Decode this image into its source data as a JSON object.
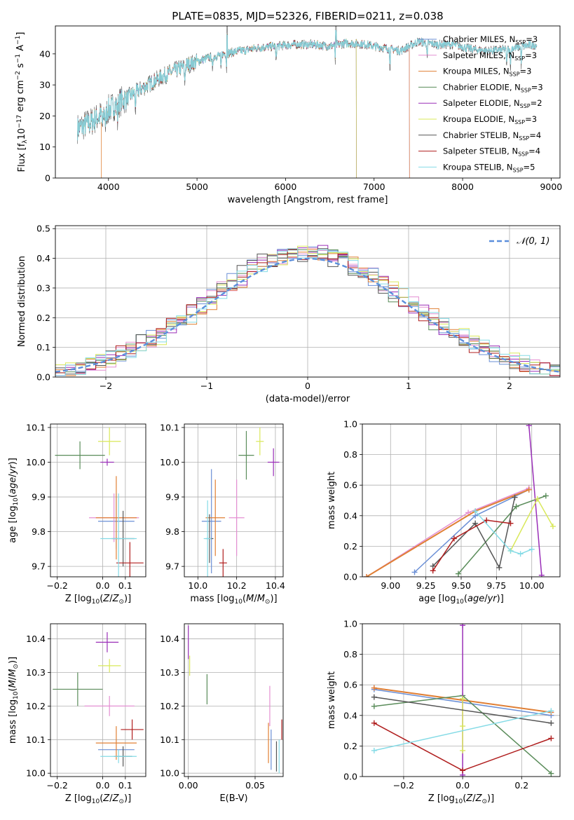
{
  "figure_title": "PLATE=0835, MJD=52326, FIBERID=0211, z=0.038",
  "colors": {
    "Chabrier MILES": "#6a8fd6",
    "Salpeter MILES": "#e48fd2",
    "Kroupa MILES": "#e08035",
    "Chabrier ELODIE": "#5a8c5a",
    "Salpeter ELODIE": "#9a2fb8",
    "Kroupa ELODIE": "#d9e85a",
    "Chabrier STELIB": "#555555",
    "Salpeter STELIB": "#b01e1e",
    "Kroupa STELIB": "#85dbe6",
    "normal": "#5b8fdc"
  },
  "chart_data": [
    {
      "id": "spectrum",
      "type": "line",
      "title": "PLATE=0835, MJD=52326, FIBERID=0211, z=0.038",
      "xlabel": "wavelength [Angstrom, rest frame]",
      "ylabel": "Flux [fλ10⁻¹⁷ erg cm⁻² s⁻¹ A⁻¹]",
      "xlim": [
        3400,
        9100
      ],
      "ylim": [
        0,
        49
      ],
      "xticks": [
        "4000",
        "5000",
        "6000",
        "7000",
        "8000",
        "9000"
      ],
      "yticks": [
        "0",
        "10",
        "20",
        "30",
        "40"
      ],
      "legend_position": "top-right",
      "legend": [
        "Chabrier MILES, NSSP=3",
        "Salpeter MILES, NSSP=3",
        "Kroupa MILES, NSSP=3",
        "Chabrier ELODIE, NSSP=3",
        "Salpeter ELODIE, NSSP=2",
        "Kroupa ELODIE, NSSP=3",
        "Chabrier STELIB, NSSP=4",
        "Salpeter STELIB, NSSP=4",
        "Kroupa STELIB, NSSP=5"
      ],
      "continuum": {
        "x": [
          3650,
          3800,
          3950,
          4100,
          4300,
          4500,
          4700,
          4900,
          5100,
          5300,
          5500,
          5700,
          5900,
          6100,
          6300,
          6500,
          6700,
          6900,
          7100,
          7300,
          7500,
          7700,
          7900,
          8100,
          8300,
          8500,
          8700,
          8840
        ],
        "y": [
          16,
          18,
          21,
          24,
          27.5,
          31,
          34,
          36.5,
          38.5,
          40,
          41,
          42,
          42.5,
          43,
          43,
          42.5,
          43.5,
          43,
          42,
          41,
          44,
          43,
          43,
          41.5,
          41,
          41.5,
          42.5,
          43
        ]
      },
      "absorption_features": [
        3934,
        3968,
        4102,
        4304,
        4861,
        5175,
        5270,
        5335,
        5893,
        6563,
        7180,
        7600,
        8498,
        8542,
        8662
      ],
      "model_end": {
        "Chabrier MILES": 7400,
        "Salpeter MILES": 7400,
        "Kroupa MILES": 7400,
        "Chabrier ELODIE": 6800,
        "Salpeter ELODIE": 6800,
        "Kroupa ELODIE": 6800,
        "Chabrier STELIB": 8840,
        "Salpeter STELIB": 8840,
        "Kroupa STELIB": 8840
      }
    },
    {
      "id": "residuals",
      "type": "bar",
      "xlabel": "(data-model)/error",
      "ylabel": "Normed distribution",
      "xlim": [
        -2.5,
        2.5
      ],
      "ylim": [
        0,
        0.51
      ],
      "xticks": [
        "−2",
        "−1",
        "0",
        "1",
        "2"
      ],
      "yticks": [
        "0.0",
        "0.1",
        "0.2",
        "0.3",
        "0.4",
        "0.5"
      ],
      "legend": "𝒩(0, 1)",
      "legend_position": "top-right"
    },
    {
      "id": "age_vs_Z",
      "type": "scatter",
      "xlabel": "Z [log10(Z/Z⊙)]",
      "ylabel": "age  [log10(age/yr)]",
      "xlim": [
        -0.23,
        0.19
      ],
      "ylim": [
        9.67,
        10.11
      ],
      "xticks": [
        "−0.2",
        "0.0",
        "0.1"
      ],
      "yticks": [
        "9.7",
        "9.8",
        "9.9",
        "10.0",
        "10.1"
      ],
      "points": [
        {
          "model": "Chabrier MILES",
          "x": 0.06,
          "y": 9.83,
          "xerr": 0.08,
          "yerr": 0.08
        },
        {
          "model": "Salpeter MILES",
          "x": 0.05,
          "y": 9.84,
          "xerr": 0.11,
          "yerr": 0.07
        },
        {
          "model": "Kroupa MILES",
          "x": 0.06,
          "y": 9.84,
          "xerr": 0.09,
          "yerr": 0.12
        },
        {
          "model": "Chabrier ELODIE",
          "x": -0.1,
          "y": 10.02,
          "xerr": 0.11,
          "yerr": 0.04
        },
        {
          "model": "Salpeter ELODIE",
          "x": 0.02,
          "y": 10.0,
          "xerr": 0.03,
          "yerr": 0.01
        },
        {
          "model": "Kroupa ELODIE",
          "x": 0.03,
          "y": 10.06,
          "xerr": 0.05,
          "yerr": 0.04
        },
        {
          "model": "Chabrier STELIB",
          "x": 0.09,
          "y": 9.78,
          "xerr": 0.05,
          "yerr": 0.08
        },
        {
          "model": "Salpeter STELIB",
          "x": 0.12,
          "y": 9.71,
          "xerr": 0.06,
          "yerr": 0.06
        },
        {
          "model": "Kroupa STELIB",
          "x": 0.07,
          "y": 9.78,
          "xerr": 0.08,
          "yerr": 0.13
        }
      ]
    },
    {
      "id": "age_vs_mass",
      "type": "scatter",
      "xlabel": "mass [log10(M/M⊙)]",
      "ylabel": "",
      "xlim": [
        9.93,
        10.44
      ],
      "ylim": [
        9.67,
        10.11
      ],
      "xticks": [
        "10.0",
        "10.2",
        "10.4"
      ],
      "yticks": [
        "9.7",
        "9.8",
        "9.9",
        "10.0",
        "10.1"
      ],
      "points": [
        {
          "model": "Chabrier MILES",
          "x": 10.07,
          "y": 9.83,
          "xerr": 0.05,
          "yerr": 0.15
        },
        {
          "model": "Salpeter MILES",
          "x": 10.2,
          "y": 9.84,
          "xerr": 0.04,
          "yerr": 0.11
        },
        {
          "model": "Kroupa MILES",
          "x": 10.09,
          "y": 9.84,
          "xerr": 0.05,
          "yerr": 0.11
        },
        {
          "model": "Chabrier ELODIE",
          "x": 10.25,
          "y": 10.02,
          "xerr": 0.04,
          "yerr": 0.07
        },
        {
          "model": "Salpeter ELODIE",
          "x": 10.39,
          "y": 10.0,
          "xerr": 0.03,
          "yerr": 0.04
        },
        {
          "model": "Kroupa ELODIE",
          "x": 10.32,
          "y": 10.06,
          "xerr": 0.02,
          "yerr": 0.04
        },
        {
          "model": "Chabrier STELIB",
          "x": 10.06,
          "y": 9.78,
          "xerr": 0.02,
          "yerr": 0.07
        },
        {
          "model": "Salpeter STELIB",
          "x": 10.13,
          "y": 9.71,
          "xerr": 0.02,
          "yerr": 0.04
        },
        {
          "model": "Kroupa STELIB",
          "x": 10.05,
          "y": 9.78,
          "xerr": 0.02,
          "yerr": 0.11
        }
      ]
    },
    {
      "id": "weight_vs_age",
      "type": "line",
      "xlabel": "age  [log10(age/yr)]",
      "ylabel": "mass weight",
      "xlim": [
        8.8,
        10.2
      ],
      "ylim": [
        0,
        1
      ],
      "xticks": [
        "9.00",
        "9.25",
        "9.50",
        "9.75",
        "10.00"
      ],
      "yticks": [
        "0.0",
        "0.2",
        "0.4",
        "0.6",
        "0.8",
        "1.0"
      ],
      "series": [
        {
          "model": "Chabrier MILES",
          "x": [
            9.17,
            9.6,
            9.98
          ],
          "y": [
            0.03,
            0.4,
            0.57
          ]
        },
        {
          "model": "Salpeter MILES",
          "x": [
            8.83,
            9.55,
            9.98
          ],
          "y": [
            0.0,
            0.42,
            0.58
          ]
        },
        {
          "model": "Kroupa MILES",
          "x": [
            8.83,
            9.6,
            9.98
          ],
          "y": [
            0.0,
            0.43,
            0.57
          ]
        },
        {
          "model": "Chabrier ELODIE",
          "x": [
            9.48,
            9.89,
            10.1
          ],
          "y": [
            0.02,
            0.46,
            0.53
          ]
        },
        {
          "model": "Salpeter ELODIE",
          "x": [
            9.98,
            10.07
          ],
          "y": [
            0.99,
            0.01
          ]
        },
        {
          "model": "Kroupa ELODIE",
          "x": [
            9.85,
            10.04,
            10.15
          ],
          "y": [
            0.17,
            0.51,
            0.33
          ]
        },
        {
          "model": "Chabrier STELIB",
          "x": [
            9.3,
            9.6,
            9.77,
            9.88
          ],
          "y": [
            0.07,
            0.35,
            0.06,
            0.52
          ]
        },
        {
          "model": "Salpeter STELIB",
          "x": [
            9.3,
            9.45,
            9.68,
            9.85
          ],
          "y": [
            0.04,
            0.25,
            0.37,
            0.35
          ]
        },
        {
          "model": "Kroupa STELIB",
          "x": [
            9.6,
            9.85,
            9.92,
            10.0
          ],
          "y": [
            0.43,
            0.17,
            0.15,
            0.18
          ]
        }
      ]
    },
    {
      "id": "mass_vs_Z",
      "type": "scatter",
      "xlabel": "Z [log10(Z/Z⊙)]",
      "ylabel": "mass [log10(M/M⊙)]",
      "xlim": [
        -0.23,
        0.19
      ],
      "ylim": [
        9.99,
        10.445
      ],
      "xticks": [
        "−0.2",
        "0.0",
        "0.1"
      ],
      "yticks": [
        "10.0",
        "10.1",
        "10.2",
        "10.3",
        "10.4"
      ],
      "points": [
        {
          "model": "Chabrier MILES",
          "x": 0.06,
          "y": 10.07,
          "xerr": 0.08,
          "yerr": 0.0
        },
        {
          "model": "Salpeter MILES",
          "x": 0.03,
          "y": 10.2,
          "xerr": 0.11,
          "yerr": 0.03
        },
        {
          "model": "Kroupa MILES",
          "x": 0.06,
          "y": 10.09,
          "xerr": 0.09,
          "yerr": 0.05
        },
        {
          "model": "Chabrier ELODIE",
          "x": -0.11,
          "y": 10.25,
          "xerr": 0.11,
          "yerr": 0.05
        },
        {
          "model": "Salpeter ELODIE",
          "x": 0.02,
          "y": 10.39,
          "xerr": 0.05,
          "yerr": 0.03
        },
        {
          "model": "Kroupa ELODIE",
          "x": 0.03,
          "y": 10.32,
          "xerr": 0.05,
          "yerr": 0.02
        },
        {
          "model": "Chabrier STELIB",
          "x": 0.09,
          "y": 10.05,
          "xerr": 0.04,
          "yerr": 0.03
        },
        {
          "model": "Salpeter STELIB",
          "x": 0.13,
          "y": 10.13,
          "xerr": 0.05,
          "yerr": 0.03
        },
        {
          "model": "Kroupa STELIB",
          "x": 0.07,
          "y": 10.05,
          "xerr": 0.08,
          "yerr": 0.02
        }
      ]
    },
    {
      "id": "mass_vs_ebv",
      "type": "scatter",
      "xlabel": "E(B-V)",
      "ylabel": "",
      "xlim": [
        -0.003,
        0.071
      ],
      "ylim": [
        9.99,
        10.445
      ],
      "xticks": [
        "0.00",
        "0.05"
      ],
      "yticks": [
        "10.0",
        "10.1",
        "10.2",
        "10.3",
        "10.4"
      ],
      "points": [
        {
          "model": "Chabrier MILES",
          "x": 0.062,
          "y": 10.07,
          "xerr": 0.0,
          "yerr": 0.06
        },
        {
          "model": "Salpeter MILES",
          "x": 0.061,
          "y": 10.2,
          "xerr": 0.0,
          "yerr": 0.06
        },
        {
          "model": "Kroupa MILES",
          "x": 0.06,
          "y": 10.09,
          "xerr": 0.0,
          "yerr": 0.06
        },
        {
          "model": "Chabrier ELODIE",
          "x": 0.014,
          "y": 10.25,
          "xerr": 0.0,
          "yerr": 0.045
        },
        {
          "model": "Salpeter ELODIE",
          "x": 0.0,
          "y": 10.39,
          "xerr": 0.0,
          "yerr": 0.05
        },
        {
          "model": "Kroupa ELODIE",
          "x": 0.001,
          "y": 10.32,
          "xerr": 0.0,
          "yerr": 0.03
        },
        {
          "model": "Chabrier STELIB",
          "x": 0.066,
          "y": 10.05,
          "xerr": 0.0,
          "yerr": 0.045
        },
        {
          "model": "Salpeter STELIB",
          "x": 0.07,
          "y": 10.13,
          "xerr": 0.0,
          "yerr": 0.03
        },
        {
          "model": "Kroupa STELIB",
          "x": 0.068,
          "y": 10.05,
          "xerr": 0.0,
          "yerr": 0.05
        }
      ]
    },
    {
      "id": "weight_vs_Z",
      "type": "line",
      "xlabel": "Z [log10(Z/Z⊙)]",
      "ylabel": "mass weight",
      "xlim": [
        -0.34,
        0.33
      ],
      "ylim": [
        0,
        1
      ],
      "xticks": [
        "−0.2",
        "0.0",
        "0.2"
      ],
      "yticks": [
        "0.0",
        "0.2",
        "0.4",
        "0.6",
        "0.8",
        "1.0"
      ],
      "series": [
        {
          "model": "Chabrier MILES",
          "x": [
            -0.3,
            0.3
          ],
          "y": [
            0.57,
            0.4
          ]
        },
        {
          "model": "Salpeter MILES",
          "x": [
            -0.3,
            0.3
          ],
          "y": [
            0.58,
            0.42
          ]
        },
        {
          "model": "Kroupa MILES",
          "x": [
            -0.3,
            0.0,
            0.3
          ],
          "y": [
            0.58,
            0.5,
            0.42
          ]
        },
        {
          "model": "Chabrier ELODIE",
          "x": [
            -0.3,
            0.0,
            0.3
          ],
          "y": [
            0.46,
            0.53,
            0.02
          ]
        },
        {
          "model": "Salpeter ELODIE",
          "x": [
            0.0,
            0.0
          ],
          "y": [
            0.99,
            0.01
          ]
        },
        {
          "model": "Kroupa ELODIE",
          "x": [
            0.0,
            0.0,
            0.0
          ],
          "y": [
            0.51,
            0.33,
            0.17
          ]
        },
        {
          "model": "Chabrier STELIB",
          "x": [
            -0.3,
            0.3
          ],
          "y": [
            0.52,
            0.35
          ]
        },
        {
          "model": "Salpeter STELIB",
          "x": [
            -0.3,
            0.0,
            0.3
          ],
          "y": [
            0.35,
            0.04,
            0.25
          ]
        },
        {
          "model": "Kroupa STELIB",
          "x": [
            -0.3,
            0.3
          ],
          "y": [
            0.17,
            0.43
          ]
        }
      ]
    }
  ]
}
